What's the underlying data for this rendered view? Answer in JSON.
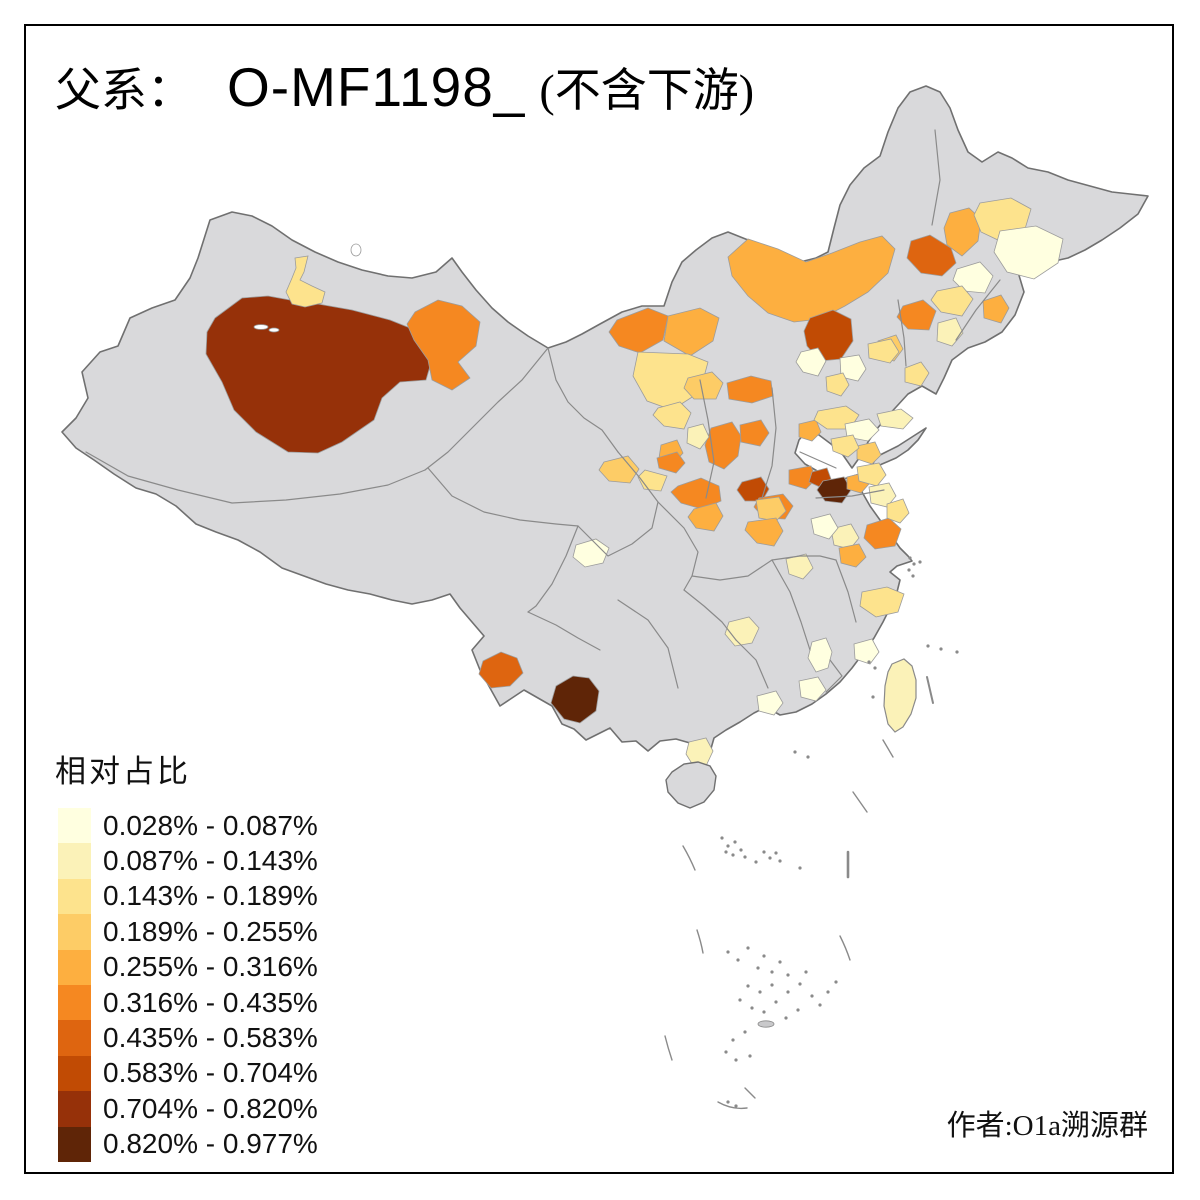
{
  "title": {
    "prefix": "父系：",
    "code": "O-MF1198_",
    "suffix": "(不含下游)"
  },
  "legend": {
    "title": "相对占比",
    "classes": [
      {
        "label": "0.028% - 0.087%",
        "color": "#FFFFE0"
      },
      {
        "label": "0.087% - 0.143%",
        "color": "#FBF2B8"
      },
      {
        "label": "0.143% - 0.189%",
        "color": "#FDE38D"
      },
      {
        "label": "0.189% - 0.255%",
        "color": "#FDCC66"
      },
      {
        "label": "0.255% - 0.316%",
        "color": "#FDAF40"
      },
      {
        "label": "0.316% - 0.435%",
        "color": "#F58821"
      },
      {
        "label": "0.435% - 0.583%",
        "color": "#DE6510"
      },
      {
        "label": "0.583% - 0.704%",
        "color": "#C14B04"
      },
      {
        "label": "0.704% - 0.820%",
        "color": "#963109"
      },
      {
        "label": "0.820% - 0.977%",
        "color": "#5F2507"
      }
    ]
  },
  "credit": {
    "text": "作者:O1a溯源群"
  },
  "map": {
    "land_color": "#D9D9DB",
    "province_border_color": "#8A8A8A",
    "outline_color": "#707070",
    "region_border_color": "#9C9C9C",
    "sea_color": "#FFFFFF",
    "regions": [
      {
        "c": 9,
        "p": "215,318 242,298 268,296 290,300 318,304 352,310 390,320 420,332 433,356 426,380 400,382 382,398 374,420 342,442 318,453 288,452 256,432 234,410 222,382 206,354 207,332"
      },
      {
        "c": 3,
        "p": "295,258 308,256 304,272 300,280 312,286 325,292 322,303 305,307 292,304 286,292 292,278 296,268"
      },
      {
        "c": 6,
        "p": "415,312 438,300 462,306 480,322 476,346 458,362 470,378 452,390 432,380 428,360 414,340 407,324"
      },
      {
        "c": 6,
        "p": "617,320 648,308 668,316 663,340 640,353 619,346 609,332"
      },
      {
        "c": 5,
        "p": "668,316 700,308 719,318 713,341 690,356 664,341"
      },
      {
        "c": 3,
        "p": "638,352 688,354 708,362 700,392 672,410 647,401 633,376"
      },
      {
        "c": 5,
        "p": "728,257 748,239 778,249 806,262 832,253 860,242 882,236 895,249 888,273 868,292 845,306 820,319 794,322 768,313 748,296 732,276"
      },
      {
        "c": 6,
        "p": "903,306 923,300 936,311 929,330 908,329 897,317"
      },
      {
        "c": 5,
        "p": "950,213 969,208 981,219 978,241 962,256 947,245 944,228"
      },
      {
        "c": 7,
        "p": "911,241 930,235 951,248 956,263 942,276 921,273 907,258"
      },
      {
        "c": 3,
        "p": "980,203 1011,198 1031,209 1025,229 1000,241 981,232 974,215"
      },
      {
        "c": 1,
        "p": "1000,231 1036,226 1063,239 1058,263 1034,279 1007,272 994,252"
      },
      {
        "c": 1,
        "p": "957,269 980,262 993,276 985,293 964,291 953,280"
      },
      {
        "c": 5,
        "p": "983,301 1001,295 1009,308 1001,323 984,318"
      },
      {
        "c": 3,
        "p": "937,291 962,286 973,299 962,316 941,312 931,300"
      },
      {
        "c": 2,
        "p": "938,323 956,318 963,333 952,346 937,341"
      },
      {
        "c": 3,
        "p": "905,368 921,362 929,373 921,386 905,382"
      },
      {
        "c": 4,
        "p": "878,341 896,335 903,349 894,361 877,355"
      },
      {
        "c": 8,
        "p": "810,318 833,310 851,319 853,341 841,359 820,361 807,346 804,331"
      },
      {
        "c": 1,
        "p": "801,352 818,348 826,361 818,376 803,372 796,362"
      },
      {
        "c": 1,
        "p": "840,358 859,355 866,369 858,381 841,377"
      },
      {
        "c": 3,
        "p": "868,344 891,339 899,352 890,363 869,358"
      },
      {
        "c": 3,
        "p": "826,377 843,373 849,385 841,396 827,391"
      },
      {
        "c": 6,
        "p": "727,383 751,376 771,381 773,396 752,403 729,399"
      },
      {
        "c": 4,
        "p": "688,378 712,372 723,383 716,399 694,399 684,388"
      },
      {
        "c": 6,
        "p": "711,428 732,422 741,436 738,456 724,469 709,462 705,445"
      },
      {
        "c": 6,
        "p": "740,425 761,420 769,433 760,446 741,442"
      },
      {
        "c": 3,
        "p": "658,408 680,402 691,413 684,429 664,426 653,415"
      },
      {
        "c": 5,
        "p": "661,445 677,440 683,453 674,463 659,458"
      },
      {
        "c": 2,
        "p": "688,428 703,424 709,437 700,449 687,443"
      },
      {
        "c": 4,
        "p": "604,462 628,456 639,469 630,483 609,481 599,470"
      },
      {
        "c": 6,
        "p": "657,458 677,452 685,463 676,473 659,468"
      },
      {
        "c": 3,
        "p": "645,470 667,476 661,491 644,489 638,477"
      },
      {
        "c": 6,
        "p": "678,486 701,478 719,486 721,501 702,509 681,503 671,492"
      },
      {
        "c": 5,
        "p": "694,509 716,503 723,516 714,531 696,528 688,517"
      },
      {
        "c": 8,
        "p": "742,482 761,477 769,489 762,501 745,501 737,490"
      },
      {
        "c": 6,
        "p": "759,498 783,494 793,506 785,519 764,518 754,507"
      },
      {
        "c": 6,
        "p": "789,470 811,466 816,479 806,489 789,484"
      },
      {
        "c": 8,
        "p": "812,472 827,468 831,479 822,488 809,482"
      },
      {
        "c": 10,
        "p": "823,481 844,477 851,490 842,503 825,501 817,490"
      },
      {
        "c": 5,
        "p": "847,477 863,473 869,484 861,493 847,489"
      },
      {
        "c": 4,
        "p": "756,500 779,497 786,511 776,521 759,518"
      },
      {
        "c": 5,
        "p": "748,522 776,518 783,531 774,546 757,543 745,530"
      },
      {
        "c": 2,
        "p": "786,559 806,554 813,568 803,579 789,574"
      },
      {
        "c": 5,
        "p": "799,424 816,420 821,432 812,441 799,437"
      },
      {
        "c": 3,
        "p": "818,411 846,406 859,415 850,429 827,429 814,420"
      },
      {
        "c": 1,
        "p": "845,424 869,419 879,430 868,441 847,437"
      },
      {
        "c": 4,
        "p": "857,446 875,442 881,455 872,464 857,459"
      },
      {
        "c": 2,
        "p": "877,414 901,409 913,418 903,429 881,426"
      },
      {
        "c": 3,
        "p": "831,439 853,435 859,448 848,457 833,451"
      },
      {
        "c": 3,
        "p": "857,467 879,463 886,475 877,486 859,481"
      },
      {
        "c": 2,
        "p": "869,487 889,483 896,496 887,507 871,503"
      },
      {
        "c": 6,
        "p": "867,525 889,518 901,529 895,546 875,549 864,538"
      },
      {
        "c": 3,
        "p": "887,504 903,499 909,513 900,523 887,518"
      },
      {
        "c": 2,
        "p": "831,529 851,524 859,538 850,549 834,545"
      },
      {
        "c": 5,
        "p": "839,548 859,544 866,557 856,567 841,563"
      },
      {
        "c": 1,
        "p": "811,519 830,514 838,528 829,539 814,534"
      },
      {
        "c": 3,
        "p": "862,592 887,587 904,594 898,612 876,617 860,606"
      },
      {
        "c": 1,
        "p": "576,545 596,539 609,548 603,563 585,567 573,557"
      },
      {
        "c": 7,
        "p": "483,661 501,652 517,658 523,673 510,686 491,688 479,674"
      },
      {
        "c": 10,
        "p": "556,686 573,676 589,678 599,691 596,711 580,723 564,719 551,703"
      },
      {
        "c": 2,
        "p": "729,622 749,617 759,628 752,643 735,646 725,634"
      },
      {
        "c": 2,
        "p": "689,742 706,738 713,751 706,766 694,767 686,754"
      },
      {
        "c": 1,
        "p": "757,696 776,691 783,703 774,715 759,711"
      },
      {
        "c": 1,
        "p": "854,644 872,639 879,652 870,664 855,659"
      },
      {
        "c": 1,
        "p": "799,681 818,677 826,690 816,701 801,697"
      },
      {
        "c": 1,
        "p": "812,642 826,638 832,652 828,668 816,672 808,658"
      }
    ]
  }
}
